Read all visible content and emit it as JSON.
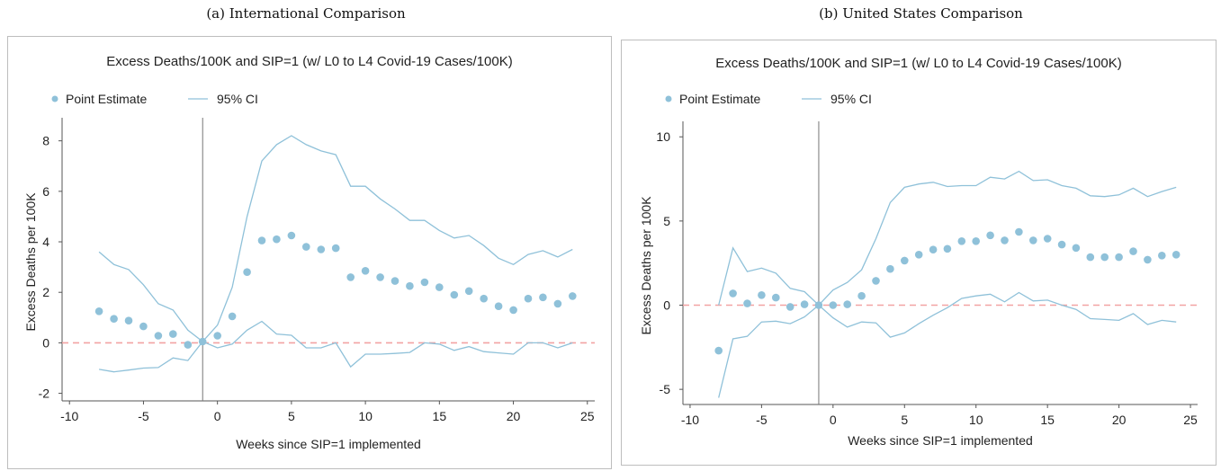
{
  "captions": {
    "a": "(a) International Comparison",
    "b": "(b) United States Comparison"
  },
  "colors": {
    "series": "#8fc1d9",
    "zero_line": "#f2a3a3",
    "vline": "#777777"
  },
  "chart_data": [
    {
      "type": "scatter",
      "title": "Excess Deaths/100K and SIP=1 (w/ L0 to L4 Covid-19 Cases/100K)",
      "xlabel": "Weeks since SIP=1 implemented",
      "ylabel": "Excess Deaths per 100K",
      "legend": {
        "point": "Point Estimate",
        "ci": "95% CI",
        "placement": "top-left"
      },
      "xlim": [
        -10.5,
        25.5
      ],
      "ylim": [
        -2.3,
        8.7
      ],
      "xticks": [
        -10,
        -5,
        0,
        5,
        10,
        15,
        20,
        25
      ],
      "yticks": [
        -2,
        0,
        2,
        4,
        6,
        8
      ],
      "reference_lines": {
        "vertical_x": -1,
        "horizontal_y": 0
      },
      "x": [
        -8,
        -7,
        -6,
        -5,
        -4,
        -3,
        -2,
        -1,
        0,
        1,
        2,
        3,
        4,
        5,
        6,
        7,
        8,
        9,
        10,
        11,
        12,
        13,
        14,
        15,
        16,
        17,
        18,
        19,
        20,
        21,
        22,
        23,
        24
      ],
      "point_estimate": [
        1.25,
        0.95,
        0.88,
        0.65,
        0.28,
        0.35,
        -0.08,
        0.05,
        0.28,
        1.05,
        2.8,
        4.05,
        4.1,
        4.25,
        3.8,
        3.7,
        3.75,
        2.6,
        2.85,
        2.6,
        2.45,
        2.25,
        2.4,
        2.2,
        1.9,
        2.05,
        1.75,
        1.45,
        1.3,
        1.75,
        1.8,
        1.55,
        1.85
      ],
      "ci_upper": [
        3.6,
        3.1,
        2.9,
        2.3,
        1.55,
        1.3,
        0.5,
        0.05,
        0.7,
        2.2,
        5.0,
        7.2,
        7.85,
        8.2,
        7.85,
        7.6,
        7.45,
        6.2,
        6.2,
        5.7,
        5.3,
        4.85,
        4.85,
        4.45,
        4.15,
        4.25,
        3.85,
        3.35,
        3.1,
        3.5,
        3.65,
        3.4,
        3.7
      ],
      "ci_lower": [
        -1.05,
        -1.15,
        -1.08,
        -1.0,
        -0.98,
        -0.6,
        -0.7,
        0.05,
        -0.2,
        -0.05,
        0.5,
        0.85,
        0.35,
        0.3,
        -0.2,
        -0.2,
        0.0,
        -0.95,
        -0.45,
        -0.45,
        -0.42,
        -0.38,
        0.0,
        -0.05,
        -0.3,
        -0.15,
        -0.35,
        -0.4,
        -0.45,
        0.0,
        0.0,
        -0.2,
        0.0
      ]
    },
    {
      "type": "scatter",
      "title": "Excess Deaths/100K and SIP=1 (w/ L0 to L4 Covid-19 Cases/100K)",
      "xlabel": "Weeks since SIP=1 implemented",
      "ylabel": "Excess Deaths per 100K",
      "legend": {
        "point": "Point Estimate",
        "ci": "95% CI",
        "placement": "top-left"
      },
      "xlim": [
        -10.5,
        25.5
      ],
      "ylim": [
        -5.9,
        10.6
      ],
      "xticks": [
        -10,
        -5,
        0,
        5,
        10,
        15,
        20,
        25
      ],
      "yticks": [
        -5,
        0,
        5,
        10
      ],
      "reference_lines": {
        "vertical_x": -1,
        "horizontal_y": 0
      },
      "x": [
        -8,
        -7,
        -6,
        -5,
        -4,
        -3,
        -2,
        -1,
        0,
        1,
        2,
        3,
        4,
        5,
        6,
        7,
        8,
        9,
        10,
        11,
        12,
        13,
        14,
        15,
        16,
        17,
        18,
        19,
        20,
        21,
        22,
        23,
        24
      ],
      "point_estimate": [
        -2.7,
        0.7,
        0.1,
        0.6,
        0.45,
        -0.1,
        0.05,
        0.0,
        0.0,
        0.05,
        0.55,
        1.45,
        2.15,
        2.65,
        3.0,
        3.3,
        3.35,
        3.8,
        3.8,
        4.15,
        3.85,
        4.35,
        3.85,
        3.95,
        3.6,
        3.4,
        2.85,
        2.85,
        2.85,
        3.2,
        2.7,
        2.95,
        3.0
      ],
      "ci_upper": [
        0.0,
        3.4,
        2.0,
        2.2,
        1.9,
        1.0,
        0.8,
        0.0,
        0.9,
        1.35,
        2.1,
        3.95,
        6.1,
        7.0,
        7.2,
        7.3,
        7.05,
        7.1,
        7.1,
        7.6,
        7.5,
        7.95,
        7.4,
        7.45,
        7.1,
        6.95,
        6.5,
        6.45,
        6.55,
        6.95,
        6.45,
        6.75,
        7.0
      ],
      "ci_lower": [
        -5.5,
        -2.0,
        -1.85,
        -1.0,
        -0.95,
        -1.1,
        -0.7,
        0.0,
        -0.75,
        -1.3,
        -1.0,
        -1.05,
        -1.9,
        -1.65,
        -1.1,
        -0.6,
        -0.15,
        0.4,
        0.55,
        0.65,
        0.2,
        0.75,
        0.25,
        0.3,
        0.0,
        -0.25,
        -0.8,
        -0.85,
        -0.9,
        -0.5,
        -1.15,
        -0.9,
        -1.0
      ]
    }
  ]
}
